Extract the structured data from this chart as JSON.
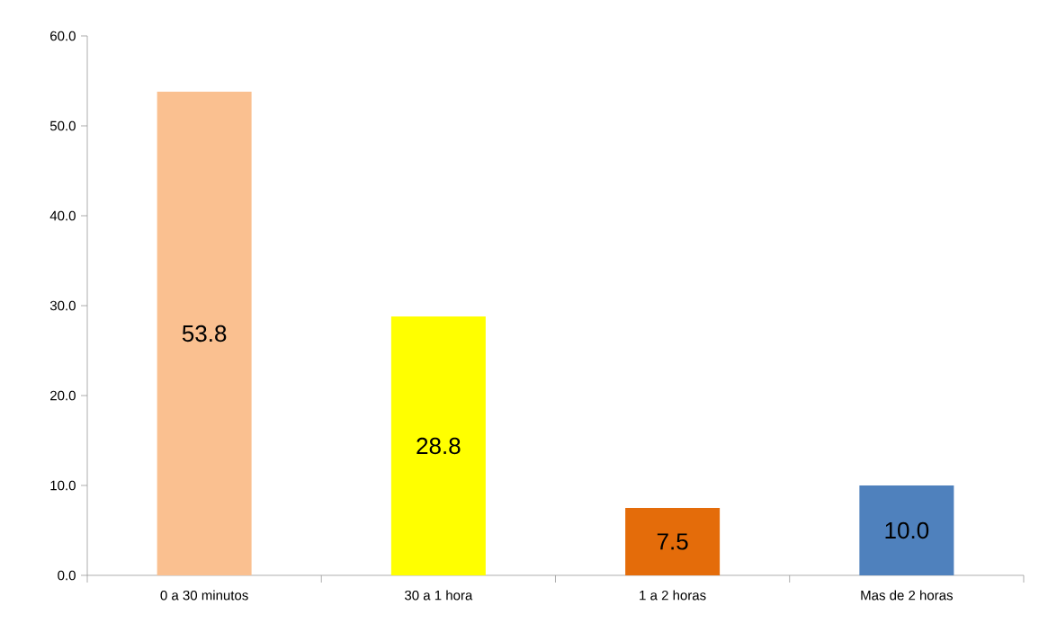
{
  "chart_data": {
    "type": "bar",
    "categories": [
      "0 a 30 minutos",
      "30 a 1 hora",
      "1 a 2 horas",
      "Mas de 2 horas"
    ],
    "values": [
      53.8,
      28.8,
      7.5,
      10.0
    ],
    "colors": [
      "#fac090",
      "#ffff00",
      "#e46c0a",
      "#4f81bd"
    ],
    "ylim": [
      0,
      60
    ],
    "yticks": [
      {
        "value": 0,
        "label": "0.0"
      },
      {
        "value": 10,
        "label": "10.0"
      },
      {
        "value": 20,
        "label": "20.0"
      },
      {
        "value": 30,
        "label": "30.0"
      },
      {
        "value": 40,
        "label": "40.0"
      },
      {
        "value": 50,
        "label": "50.0"
      },
      {
        "value": 60,
        "label": "60.0"
      }
    ],
    "value_labels": [
      "53.8",
      "28.8",
      "7.5",
      "10.0"
    ]
  }
}
